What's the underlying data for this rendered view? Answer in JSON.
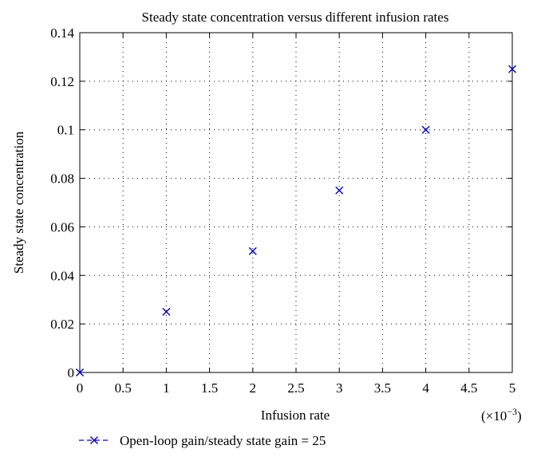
{
  "chart_data": {
    "type": "scatter",
    "title": "Steady state concentration versus different infusion rates",
    "xlabel": "Infusion rate",
    "ylabel": "Steady state concentration",
    "x_multiplier_label": "(×10",
    "x_multiplier_exponent": "−3",
    "x_multiplier_close": ")",
    "xlim": [
      0,
      5
    ],
    "ylim": [
      0,
      0.14
    ],
    "x_ticks": [
      0,
      0.5,
      1,
      1.5,
      2,
      2.5,
      3,
      3.5,
      4,
      4.5,
      5
    ],
    "x_tick_labels": [
      "0",
      "0.5",
      "1",
      "1.5",
      "2",
      "2.5",
      "3",
      "3.5",
      "4",
      "4.5",
      "5"
    ],
    "y_ticks": [
      0,
      0.02,
      0.04,
      0.06,
      0.08,
      0.1,
      0.12,
      0.14
    ],
    "y_tick_labels": [
      "0",
      "0.02",
      "0.04",
      "0.06",
      "0.08",
      "0.1",
      "0.12",
      "0.14"
    ],
    "grid": true,
    "legend_position": "bottom-left",
    "series": [
      {
        "name": "Open-loop gain/steady state gain = 25",
        "color": "#0000cc",
        "marker": "x",
        "x": [
          0,
          1,
          2,
          3,
          4,
          5
        ],
        "y": [
          0,
          0.025,
          0.05,
          0.075,
          0.1,
          0.125
        ]
      }
    ]
  }
}
